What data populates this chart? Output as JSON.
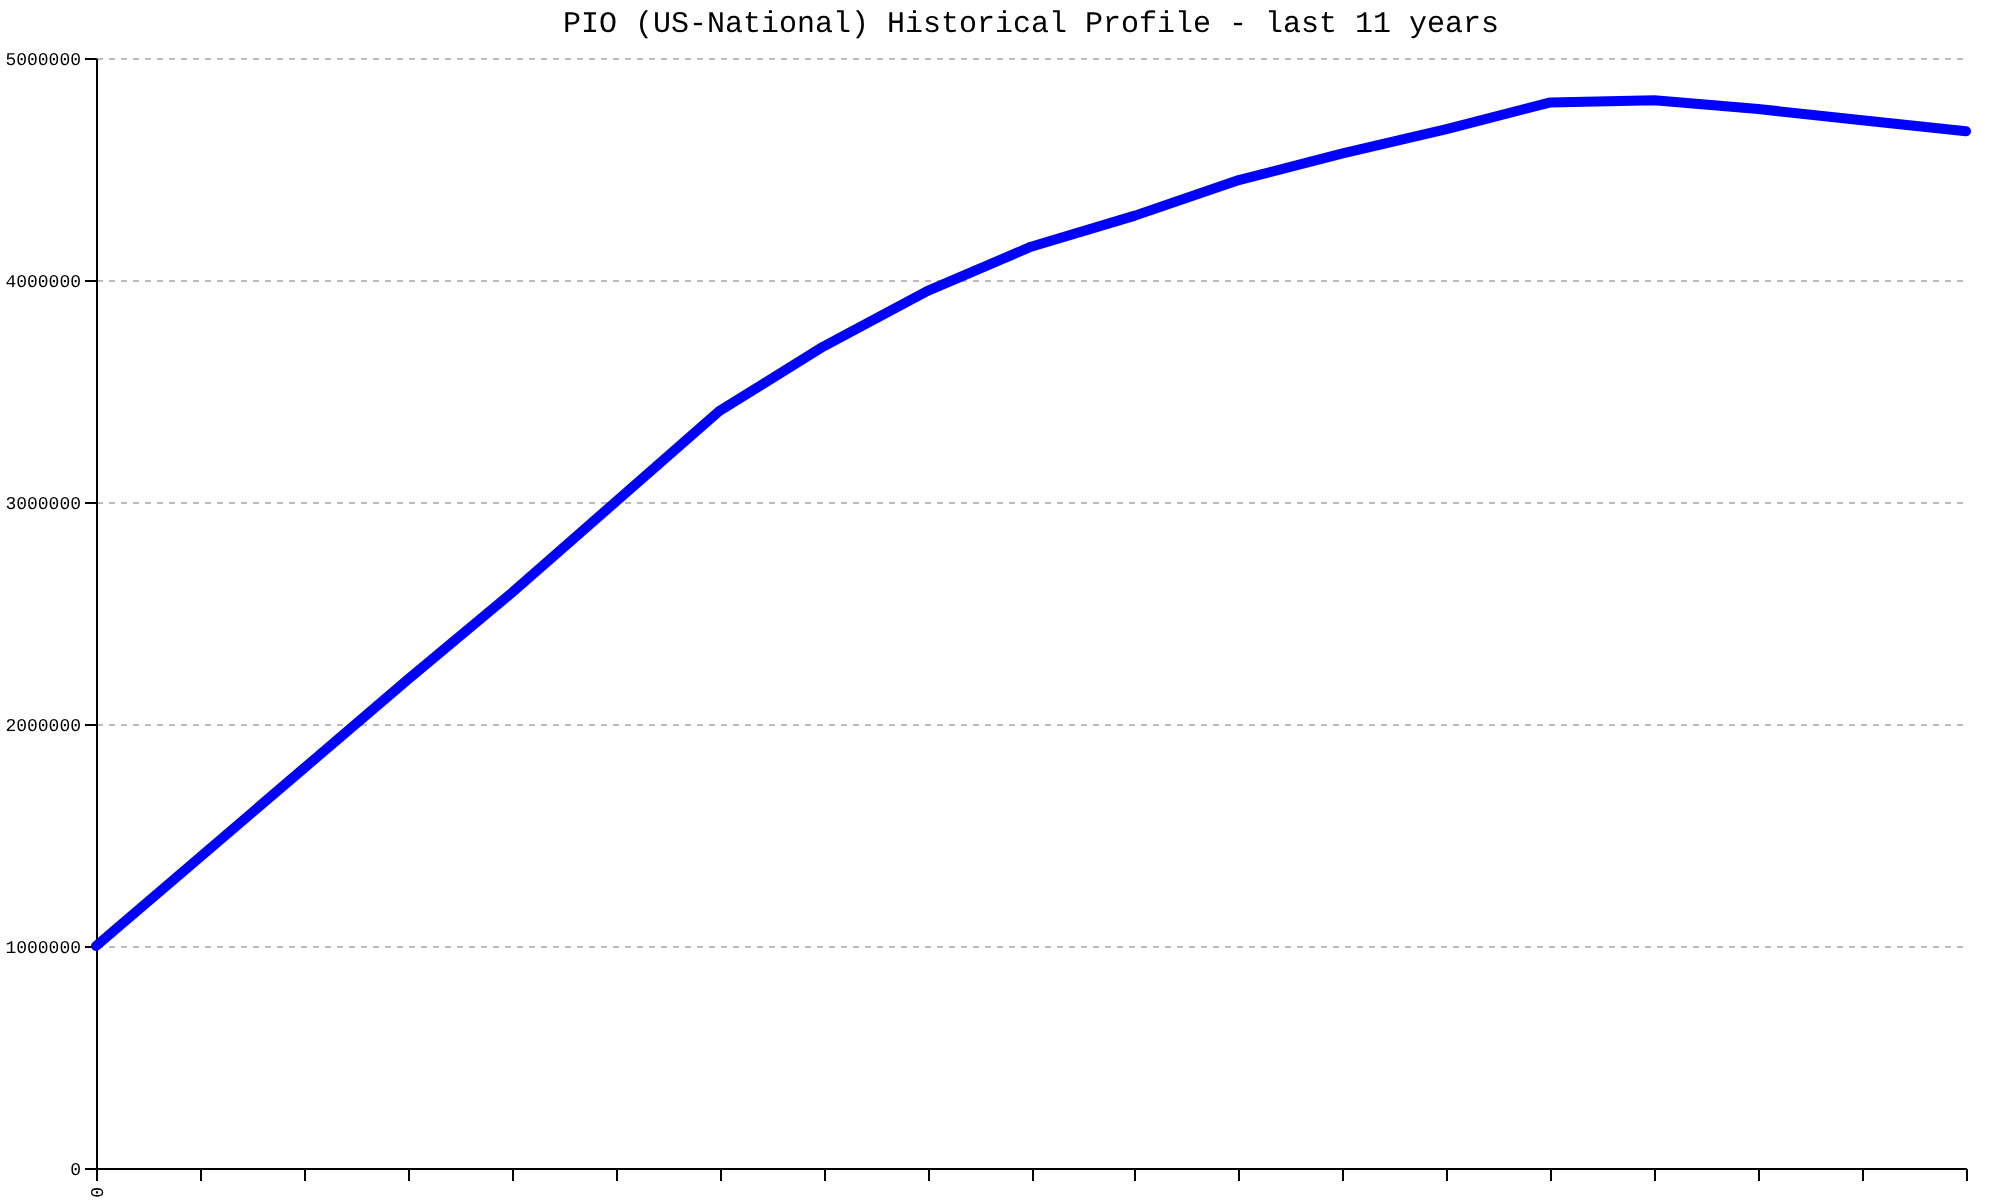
{
  "chart_data": {
    "type": "line",
    "title": "PIO (US-National) Historical Profile - last 11 years",
    "categories": [
      "0",
      null,
      null,
      null,
      null,
      null,
      null,
      null,
      null,
      null,
      null,
      null,
      null,
      null,
      null,
      null,
      null,
      null,
      null
    ],
    "series": [
      {
        "color": "#0000ff",
        "values": [
          1000000,
          1400000,
          1800000,
          2200000,
          2590000,
          3000000,
          3410000,
          3700000,
          3950000,
          4150000,
          4290000,
          4450000,
          4570000,
          4680000,
          4800000,
          4810000,
          4770000,
          4720000,
          4670000
        ]
      }
    ],
    "ylim": [
      0,
      5000000
    ],
    "yticks": [
      0,
      1000000,
      2000000,
      3000000,
      4000000,
      5000000
    ],
    "grid": "y",
    "marker": "none",
    "line_style": "solid"
  }
}
